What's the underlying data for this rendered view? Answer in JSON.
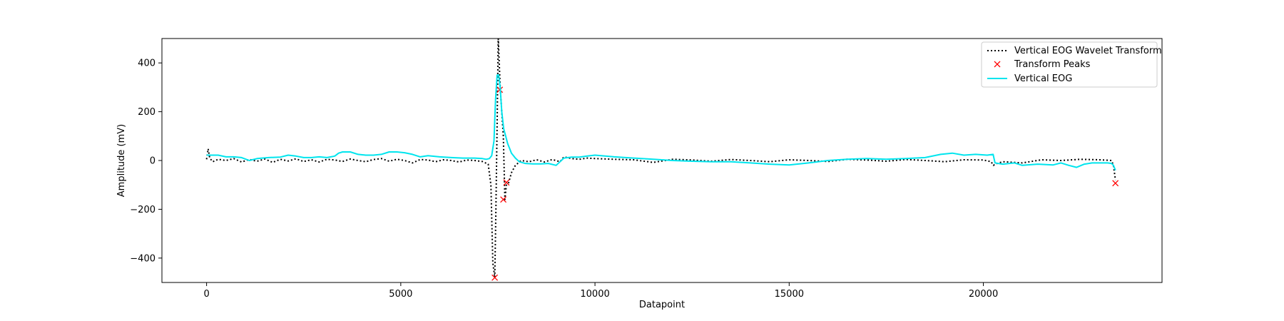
{
  "chart_data": {
    "type": "line",
    "title": "",
    "xlabel": "Datapoint",
    "ylabel": "Amplitude (mV)",
    "xlim": [
      -1150,
      24600
    ],
    "ylim": [
      -500,
      500
    ],
    "xticks": [
      0,
      5000,
      10000,
      15000,
      20000
    ],
    "yticks": [
      -400,
      -200,
      0,
      200,
      400
    ],
    "xtick_labels": [
      "0",
      "5000",
      "10000",
      "15000",
      "20000"
    ],
    "ytick_labels": [
      "−400",
      "−200",
      "0",
      "200",
      "400"
    ],
    "grid": false,
    "legend_position": "top-right",
    "series": [
      {
        "name": "Vertical EOG Wavelet Transform",
        "style": "dotted",
        "color": "#000000",
        "x": [
          0,
          40,
          80,
          160,
          300,
          500,
          700,
          900,
          1100,
          1300,
          1500,
          1700,
          1900,
          2100,
          2300,
          2500,
          2700,
          2900,
          3100,
          3300,
          3500,
          3700,
          3900,
          4100,
          4300,
          4500,
          4700,
          4900,
          5100,
          5300,
          5500,
          5700,
          5900,
          6100,
          6300,
          6500,
          6700,
          6900,
          7100,
          7250,
          7320,
          7370,
          7420,
          7450,
          7480,
          7510,
          7560,
          7600,
          7640,
          7680,
          7720,
          7780,
          7850,
          7950,
          8100,
          8300,
          8500,
          8700,
          8900,
          9100,
          9200,
          9400,
          9600,
          9800,
          10000,
          10500,
          11000,
          11500,
          12000,
          12500,
          13000,
          13500,
          14000,
          14500,
          15000,
          15500,
          16000,
          16500,
          17000,
          17500,
          18000,
          18500,
          19000,
          19500,
          20000,
          20200,
          20260,
          20300,
          20500,
          21000,
          21500,
          22000,
          22500,
          23000,
          23300,
          23350,
          23400
        ],
        "y": [
          5,
          48,
          10,
          -5,
          5,
          0,
          8,
          -6,
          4,
          -3,
          6,
          -8,
          5,
          -2,
          7,
          -4,
          3,
          -6,
          5,
          2,
          -4,
          6,
          0,
          -5,
          4,
          8,
          -3,
          5,
          0,
          -10,
          4,
          2,
          -5,
          3,
          0,
          -6,
          2,
          0,
          -4,
          -15,
          -100,
          -420,
          -480,
          -200,
          150,
          500,
          300,
          200,
          100,
          -160,
          -100,
          -90,
          -50,
          -20,
          0,
          -5,
          3,
          -6,
          4,
          -5,
          15,
          8,
          5,
          10,
          8,
          5,
          3,
          -8,
          5,
          2,
          -3,
          4,
          0,
          -5,
          3,
          0,
          -4,
          5,
          2,
          -3,
          4,
          0,
          -5,
          3,
          2,
          -5,
          -20,
          -15,
          -5,
          -10,
          3,
          0,
          5,
          3,
          0,
          -20,
          -80
        ]
      },
      {
        "name": "Transform Peaks",
        "style": "marker",
        "color": "#ff0000",
        "x": [
          7420,
          7550,
          7640,
          7720,
          23400
        ],
        "y": [
          -480,
          290,
          -160,
          -90,
          -93
        ]
      },
      {
        "name": "Vertical EOG",
        "style": "solid",
        "color": "#00e5ee",
        "x": [
          0,
          300,
          500,
          700,
          900,
          1100,
          1300,
          1600,
          1900,
          2100,
          2300,
          2500,
          2700,
          2900,
          3100,
          3300,
          3400,
          3500,
          3700,
          3900,
          4100,
          4300,
          4500,
          4700,
          4900,
          5100,
          5300,
          5500,
          5700,
          6000,
          6300,
          6600,
          6900,
          7100,
          7200,
          7280,
          7340,
          7400,
          7440,
          7480,
          7520,
          7560,
          7600,
          7650,
          7700,
          7750,
          7800,
          7850,
          7950,
          8050,
          8200,
          8400,
          8600,
          8800,
          9000,
          9100,
          9200,
          9400,
          9600,
          9800,
          10000,
          10500,
          11000,
          11500,
          12000,
          12500,
          13000,
          13500,
          14000,
          14500,
          15000,
          15500,
          16000,
          16500,
          17000,
          17500,
          18000,
          18500,
          18900,
          19200,
          19500,
          19800,
          20100,
          20250,
          20300,
          20500,
          20800,
          21000,
          21400,
          21800,
          22000,
          22200,
          22400,
          22600,
          22800,
          23000,
          23200,
          23300,
          23350,
          23400
        ],
        "y": [
          22,
          22,
          15,
          15,
          12,
          0,
          8,
          12,
          14,
          22,
          18,
          12,
          12,
          15,
          12,
          18,
          30,
          35,
          35,
          25,
          22,
          22,
          25,
          35,
          35,
          32,
          25,
          15,
          20,
          15,
          12,
          10,
          10,
          8,
          5,
          8,
          20,
          80,
          250,
          350,
          350,
          300,
          200,
          130,
          100,
          70,
          50,
          30,
          10,
          -5,
          -12,
          -14,
          -14,
          -12,
          -20,
          -5,
          10,
          14,
          14,
          18,
          22,
          15,
          10,
          5,
          0,
          -3,
          -5,
          -5,
          -10,
          -15,
          -18,
          -10,
          0,
          5,
          8,
          5,
          8,
          12,
          25,
          30,
          22,
          25,
          22,
          25,
          -10,
          -15,
          -10,
          -20,
          -15,
          -18,
          -10,
          -20,
          -28,
          -15,
          -10,
          -10,
          -10,
          -12,
          -20,
          -40
        ]
      }
    ]
  }
}
